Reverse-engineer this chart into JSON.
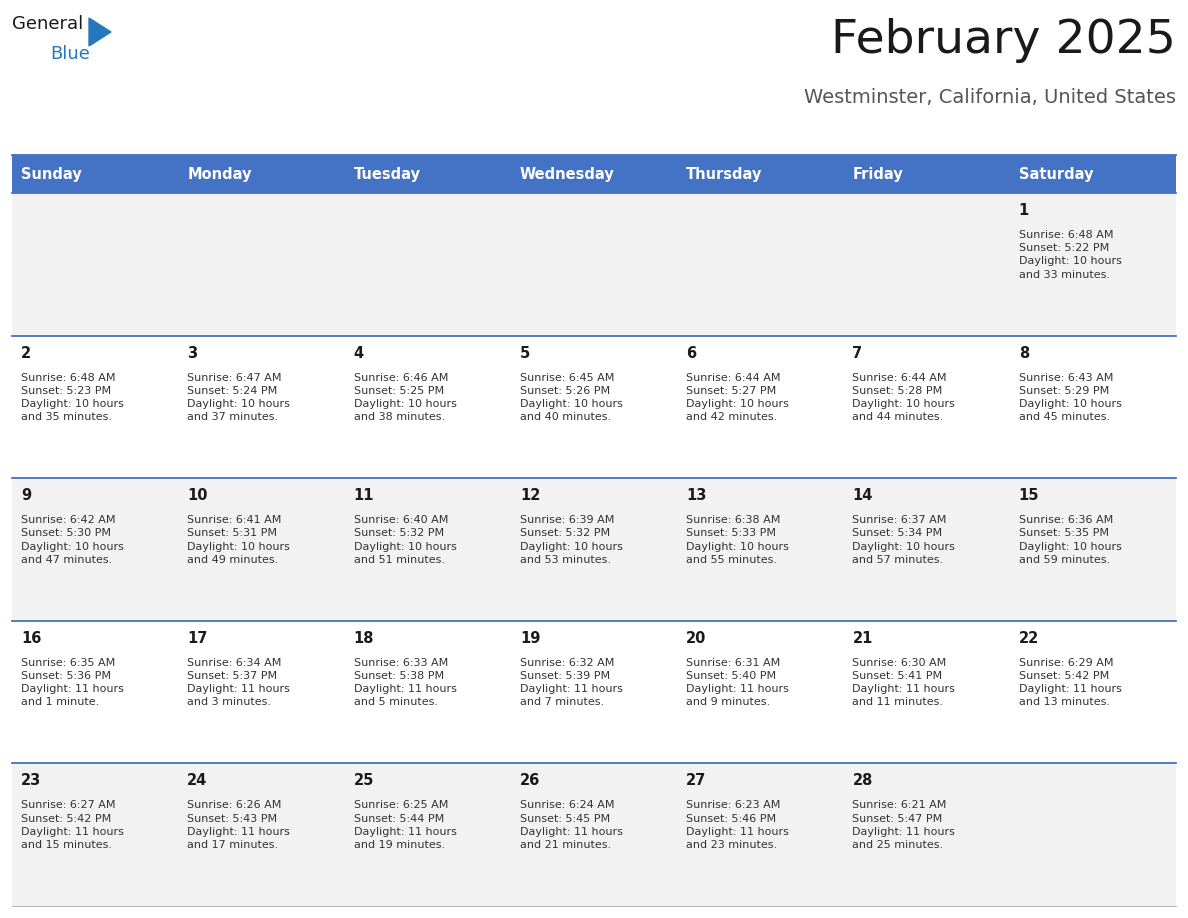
{
  "title": "February 2025",
  "subtitle": "Westminster, California, United States",
  "header_bg": "#4472C4",
  "header_text_color": "#FFFFFF",
  "days_of_week": [
    "Sunday",
    "Monday",
    "Tuesday",
    "Wednesday",
    "Thursday",
    "Friday",
    "Saturday"
  ],
  "row_bg_odd": "#F2F2F2",
  "row_bg_even": "#FFFFFF",
  "cell_text_color": "#333333",
  "day_num_color": "#1a1a1a",
  "divider_color": "#4472C4",
  "logo_general_color": "#1a1a1a",
  "logo_blue_color": "#2479BD",
  "logo_triangle_color": "#2479BD",
  "calendar_data": [
    [
      {
        "day": null,
        "sunrise": null,
        "sunset": null,
        "daylight": null
      },
      {
        "day": null,
        "sunrise": null,
        "sunset": null,
        "daylight": null
      },
      {
        "day": null,
        "sunrise": null,
        "sunset": null,
        "daylight": null
      },
      {
        "day": null,
        "sunrise": null,
        "sunset": null,
        "daylight": null
      },
      {
        "day": null,
        "sunrise": null,
        "sunset": null,
        "daylight": null
      },
      {
        "day": null,
        "sunrise": null,
        "sunset": null,
        "daylight": null
      },
      {
        "day": 1,
        "sunrise": "6:48 AM",
        "sunset": "5:22 PM",
        "daylight": "10 hours\nand 33 minutes."
      }
    ],
    [
      {
        "day": 2,
        "sunrise": "6:48 AM",
        "sunset": "5:23 PM",
        "daylight": "10 hours\nand 35 minutes."
      },
      {
        "day": 3,
        "sunrise": "6:47 AM",
        "sunset": "5:24 PM",
        "daylight": "10 hours\nand 37 minutes."
      },
      {
        "day": 4,
        "sunrise": "6:46 AM",
        "sunset": "5:25 PM",
        "daylight": "10 hours\nand 38 minutes."
      },
      {
        "day": 5,
        "sunrise": "6:45 AM",
        "sunset": "5:26 PM",
        "daylight": "10 hours\nand 40 minutes."
      },
      {
        "day": 6,
        "sunrise": "6:44 AM",
        "sunset": "5:27 PM",
        "daylight": "10 hours\nand 42 minutes."
      },
      {
        "day": 7,
        "sunrise": "6:44 AM",
        "sunset": "5:28 PM",
        "daylight": "10 hours\nand 44 minutes."
      },
      {
        "day": 8,
        "sunrise": "6:43 AM",
        "sunset": "5:29 PM",
        "daylight": "10 hours\nand 45 minutes."
      }
    ],
    [
      {
        "day": 9,
        "sunrise": "6:42 AM",
        "sunset": "5:30 PM",
        "daylight": "10 hours\nand 47 minutes."
      },
      {
        "day": 10,
        "sunrise": "6:41 AM",
        "sunset": "5:31 PM",
        "daylight": "10 hours\nand 49 minutes."
      },
      {
        "day": 11,
        "sunrise": "6:40 AM",
        "sunset": "5:32 PM",
        "daylight": "10 hours\nand 51 minutes."
      },
      {
        "day": 12,
        "sunrise": "6:39 AM",
        "sunset": "5:32 PM",
        "daylight": "10 hours\nand 53 minutes."
      },
      {
        "day": 13,
        "sunrise": "6:38 AM",
        "sunset": "5:33 PM",
        "daylight": "10 hours\nand 55 minutes."
      },
      {
        "day": 14,
        "sunrise": "6:37 AM",
        "sunset": "5:34 PM",
        "daylight": "10 hours\nand 57 minutes."
      },
      {
        "day": 15,
        "sunrise": "6:36 AM",
        "sunset": "5:35 PM",
        "daylight": "10 hours\nand 59 minutes."
      }
    ],
    [
      {
        "day": 16,
        "sunrise": "6:35 AM",
        "sunset": "5:36 PM",
        "daylight": "11 hours\nand 1 minute."
      },
      {
        "day": 17,
        "sunrise": "6:34 AM",
        "sunset": "5:37 PM",
        "daylight": "11 hours\nand 3 minutes."
      },
      {
        "day": 18,
        "sunrise": "6:33 AM",
        "sunset": "5:38 PM",
        "daylight": "11 hours\nand 5 minutes."
      },
      {
        "day": 19,
        "sunrise": "6:32 AM",
        "sunset": "5:39 PM",
        "daylight": "11 hours\nand 7 minutes."
      },
      {
        "day": 20,
        "sunrise": "6:31 AM",
        "sunset": "5:40 PM",
        "daylight": "11 hours\nand 9 minutes."
      },
      {
        "day": 21,
        "sunrise": "6:30 AM",
        "sunset": "5:41 PM",
        "daylight": "11 hours\nand 11 minutes."
      },
      {
        "day": 22,
        "sunrise": "6:29 AM",
        "sunset": "5:42 PM",
        "daylight": "11 hours\nand 13 minutes."
      }
    ],
    [
      {
        "day": 23,
        "sunrise": "6:27 AM",
        "sunset": "5:42 PM",
        "daylight": "11 hours\nand 15 minutes."
      },
      {
        "day": 24,
        "sunrise": "6:26 AM",
        "sunset": "5:43 PM",
        "daylight": "11 hours\nand 17 minutes."
      },
      {
        "day": 25,
        "sunrise": "6:25 AM",
        "sunset": "5:44 PM",
        "daylight": "11 hours\nand 19 minutes."
      },
      {
        "day": 26,
        "sunrise": "6:24 AM",
        "sunset": "5:45 PM",
        "daylight": "11 hours\nand 21 minutes."
      },
      {
        "day": 27,
        "sunrise": "6:23 AM",
        "sunset": "5:46 PM",
        "daylight": "11 hours\nand 23 minutes."
      },
      {
        "day": 28,
        "sunrise": "6:21 AM",
        "sunset": "5:47 PM",
        "daylight": "11 hours\nand 25 minutes."
      },
      {
        "day": null,
        "sunrise": null,
        "sunset": null,
        "daylight": null
      }
    ]
  ]
}
